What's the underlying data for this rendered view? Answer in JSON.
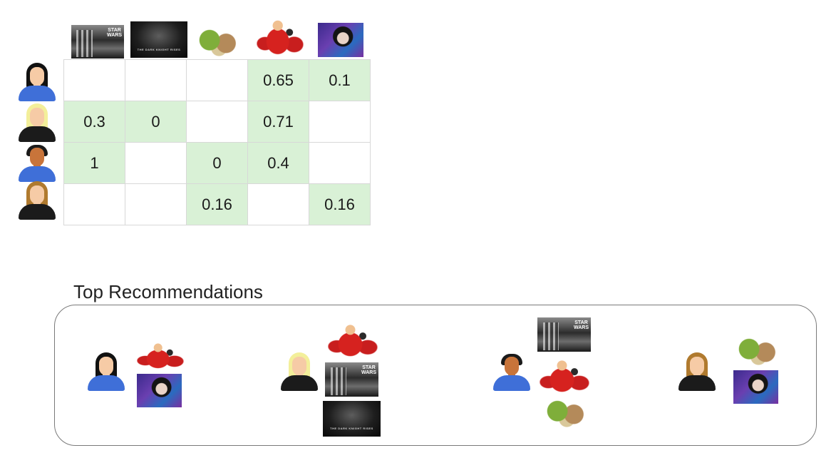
{
  "movies": [
    {
      "icon": "star-wars-poster"
    },
    {
      "icon": "dark-knight-rises-poster"
    },
    {
      "icon": "shrek-poster"
    },
    {
      "icon": "incredibles-poster"
    },
    {
      "icon": "amelie-poster"
    }
  ],
  "users": [
    {
      "icon": "woman-black-hair-icon"
    },
    {
      "icon": "woman-blonde-hair-icon"
    },
    {
      "icon": "man-icon"
    },
    {
      "icon": "woman-brown-hair-icon"
    }
  ],
  "ratings": [
    [
      "",
      "",
      "",
      "0.65",
      "0.1"
    ],
    [
      "0.3",
      "0",
      "",
      "0.71",
      ""
    ],
    [
      "1",
      "",
      "0",
      "0.4",
      ""
    ],
    [
      "",
      "",
      "0.16",
      "",
      "0.16"
    ]
  ],
  "filled_cells": [
    [
      false,
      false,
      false,
      true,
      true
    ],
    [
      true,
      true,
      false,
      true,
      false
    ],
    [
      true,
      false,
      true,
      true,
      false
    ],
    [
      false,
      false,
      true,
      false,
      true
    ]
  ],
  "colors": {
    "filled_cell": "#d9f1d6",
    "grid_border": "#d8d8d8"
  },
  "recommendations": {
    "title": "Top Recommendations",
    "per_user": [
      {
        "user": "woman-black-hair-icon",
        "movies": [
          "incredibles-poster",
          "amelie-poster"
        ]
      },
      {
        "user": "woman-blonde-hair-icon",
        "movies": [
          "incredibles-poster",
          "star-wars-poster",
          "dark-knight-rises-poster"
        ]
      },
      {
        "user": "man-icon",
        "movies": [
          "star-wars-poster",
          "incredibles-poster",
          "shrek-poster"
        ]
      },
      {
        "user": "woman-brown-hair-icon",
        "movies": [
          "shrek-poster",
          "amelie-poster"
        ]
      }
    ]
  }
}
